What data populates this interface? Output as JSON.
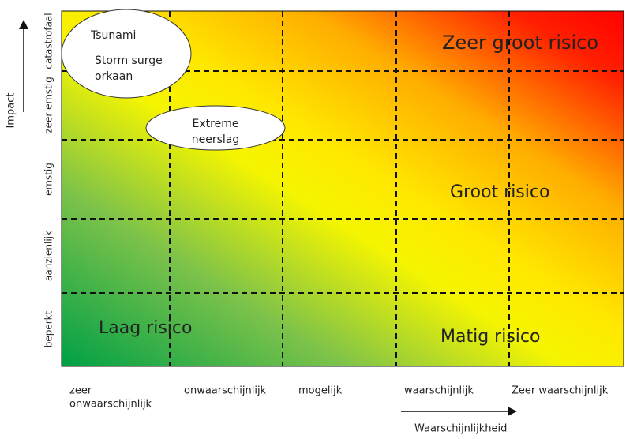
{
  "axes": {
    "y_label": "Impact",
    "x_label": "Waarschijnlijkheid"
  },
  "rows": [
    "catastrofaal",
    "zeer ernstig",
    "ernstig",
    "aanzienlijk",
    "beperkt"
  ],
  "columns": [
    [
      "zeer",
      "onwaarschijnlijk"
    ],
    [
      "onwaarschijnlijk"
    ],
    [
      "mogelijk"
    ],
    [
      "waarschijnlijk"
    ],
    [
      "Zeer waarschijnlijk"
    ]
  ],
  "zones": [
    "Zeer groot risico",
    "Groot risico",
    "Matig risico",
    "Laag risico"
  ],
  "events": [
    {
      "lines": [
        "Tsunami",
        "Storm surge",
        "orkaan"
      ]
    },
    {
      "lines": [
        "Extreme",
        "neerslag"
      ]
    }
  ]
}
